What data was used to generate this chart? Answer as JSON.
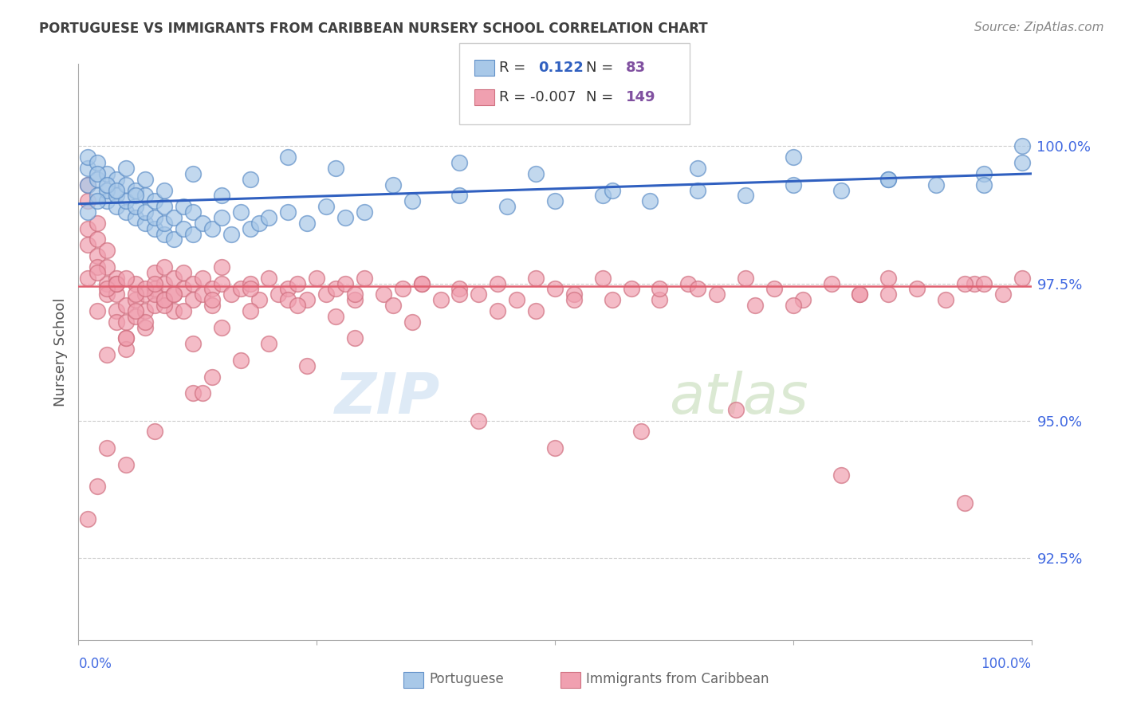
{
  "title": "PORTUGUESE VS IMMIGRANTS FROM CARIBBEAN NURSERY SCHOOL CORRELATION CHART",
  "source": "Source: ZipAtlas.com",
  "ylabel": "Nursery School",
  "y_ticks": [
    92.5,
    95.0,
    97.5,
    100.0
  ],
  "y_tick_labels": [
    "92.5%",
    "95.0%",
    "97.5%",
    "100.0%"
  ],
  "x_lim": [
    0,
    100
  ],
  "y_lim": [
    91.0,
    101.5
  ],
  "blue_color": "#A8C8E8",
  "pink_color": "#F0A0B0",
  "blue_line_color": "#3060C0",
  "pink_line_color": "#E06070",
  "title_color": "#404040",
  "axis_label_color": "#4169E1",
  "legend_R_color": "#3060C0",
  "legend_N_color": "#8050A0",
  "blue_edge_color": "#6090C8",
  "pink_edge_color": "#D07080",
  "blue_trend_start_y": 98.95,
  "blue_trend_end_y": 99.5,
  "pink_trend_y": 97.45,
  "blue_x": [
    1,
    1,
    1,
    2,
    2,
    2,
    3,
    3,
    3,
    4,
    4,
    4,
    5,
    5,
    5,
    6,
    6,
    6,
    7,
    7,
    7,
    8,
    8,
    8,
    9,
    9,
    9,
    10,
    10,
    11,
    11,
    12,
    12,
    13,
    14,
    15,
    16,
    17,
    18,
    19,
    20,
    22,
    24,
    26,
    28,
    30,
    35,
    40,
    45,
    50,
    55,
    60,
    65,
    70,
    75,
    80,
    85,
    90,
    95,
    99,
    2,
    3,
    5,
    7,
    9,
    12,
    15,
    18,
    22,
    27,
    33,
    40,
    48,
    56,
    65,
    75,
    85,
    95,
    99,
    1,
    2,
    4,
    6
  ],
  "blue_y": [
    99.3,
    99.6,
    99.8,
    99.1,
    99.4,
    99.7,
    99.0,
    99.2,
    99.5,
    98.9,
    99.1,
    99.4,
    98.8,
    99.0,
    99.3,
    98.7,
    98.9,
    99.2,
    98.6,
    98.8,
    99.1,
    98.5,
    98.7,
    99.0,
    98.4,
    98.6,
    98.9,
    98.3,
    98.7,
    98.5,
    98.9,
    98.4,
    98.8,
    98.6,
    98.5,
    98.7,
    98.4,
    98.8,
    98.5,
    98.6,
    98.7,
    98.8,
    98.6,
    98.9,
    98.7,
    98.8,
    99.0,
    99.1,
    98.9,
    99.0,
    99.1,
    99.0,
    99.2,
    99.1,
    99.3,
    99.2,
    99.4,
    99.3,
    99.5,
    100.0,
    99.5,
    99.3,
    99.6,
    99.4,
    99.2,
    99.5,
    99.1,
    99.4,
    99.8,
    99.6,
    99.3,
    99.7,
    99.5,
    99.2,
    99.6,
    99.8,
    99.4,
    99.3,
    99.7,
    98.8,
    99.0,
    99.2,
    99.1
  ],
  "pink_x": [
    1,
    1,
    1,
    1,
    2,
    2,
    2,
    2,
    3,
    3,
    3,
    3,
    4,
    4,
    4,
    4,
    5,
    5,
    5,
    5,
    6,
    6,
    6,
    7,
    7,
    7,
    8,
    8,
    8,
    9,
    9,
    9,
    10,
    10,
    10,
    11,
    11,
    12,
    12,
    13,
    13,
    14,
    14,
    15,
    15,
    16,
    17,
    18,
    19,
    20,
    21,
    22,
    23,
    24,
    25,
    26,
    27,
    28,
    29,
    30,
    32,
    34,
    36,
    38,
    40,
    42,
    44,
    46,
    48,
    50,
    52,
    55,
    58,
    61,
    64,
    67,
    70,
    73,
    76,
    79,
    82,
    85,
    88,
    91,
    94,
    97,
    99,
    3,
    5,
    7,
    9,
    12,
    15,
    18,
    22,
    27,
    33,
    40,
    48,
    56,
    65,
    75,
    85,
    95,
    2,
    4,
    6,
    8,
    11,
    14,
    18,
    23,
    29,
    36,
    44,
    52,
    61,
    71,
    82,
    93,
    1,
    2,
    3,
    4,
    5,
    6,
    7,
    8,
    9,
    10,
    12,
    14,
    17,
    20,
    24,
    29,
    35,
    42,
    50,
    59,
    69,
    80,
    93,
    1,
    2,
    3,
    5,
    8,
    13
  ],
  "pink_y": [
    98.5,
    99.0,
    99.3,
    98.2,
    98.0,
    98.3,
    98.6,
    97.8,
    97.5,
    97.8,
    98.1,
    97.3,
    97.0,
    97.3,
    97.6,
    96.8,
    96.5,
    96.8,
    97.1,
    96.3,
    97.2,
    97.5,
    96.9,
    97.0,
    97.3,
    96.7,
    97.4,
    97.7,
    97.1,
    97.5,
    97.8,
    97.2,
    97.3,
    97.6,
    97.0,
    97.4,
    97.7,
    97.2,
    97.5,
    97.3,
    97.6,
    97.1,
    97.4,
    97.5,
    97.8,
    97.3,
    97.4,
    97.5,
    97.2,
    97.6,
    97.3,
    97.4,
    97.5,
    97.2,
    97.6,
    97.3,
    97.4,
    97.5,
    97.2,
    97.6,
    97.3,
    97.4,
    97.5,
    97.2,
    97.4,
    97.3,
    97.5,
    97.2,
    97.6,
    97.4,
    97.3,
    97.6,
    97.4,
    97.2,
    97.5,
    97.3,
    97.6,
    97.4,
    97.2,
    97.5,
    97.3,
    97.6,
    97.4,
    97.2,
    97.5,
    97.3,
    97.6,
    96.2,
    96.5,
    96.8,
    97.1,
    96.4,
    96.7,
    97.0,
    97.2,
    96.9,
    97.1,
    97.3,
    97.0,
    97.2,
    97.4,
    97.1,
    97.3,
    97.5,
    97.0,
    97.5,
    97.0,
    97.3,
    97.0,
    97.2,
    97.4,
    97.1,
    97.3,
    97.5,
    97.0,
    97.2,
    97.4,
    97.1,
    97.3,
    97.5,
    97.6,
    97.7,
    97.4,
    97.5,
    97.6,
    97.3,
    97.4,
    97.5,
    97.2,
    97.3,
    95.5,
    95.8,
    96.1,
    96.4,
    96.0,
    96.5,
    96.8,
    95.0,
    94.5,
    94.8,
    95.2,
    94.0,
    93.5,
    93.2,
    93.8,
    94.5,
    94.2,
    94.8,
    95.5
  ]
}
